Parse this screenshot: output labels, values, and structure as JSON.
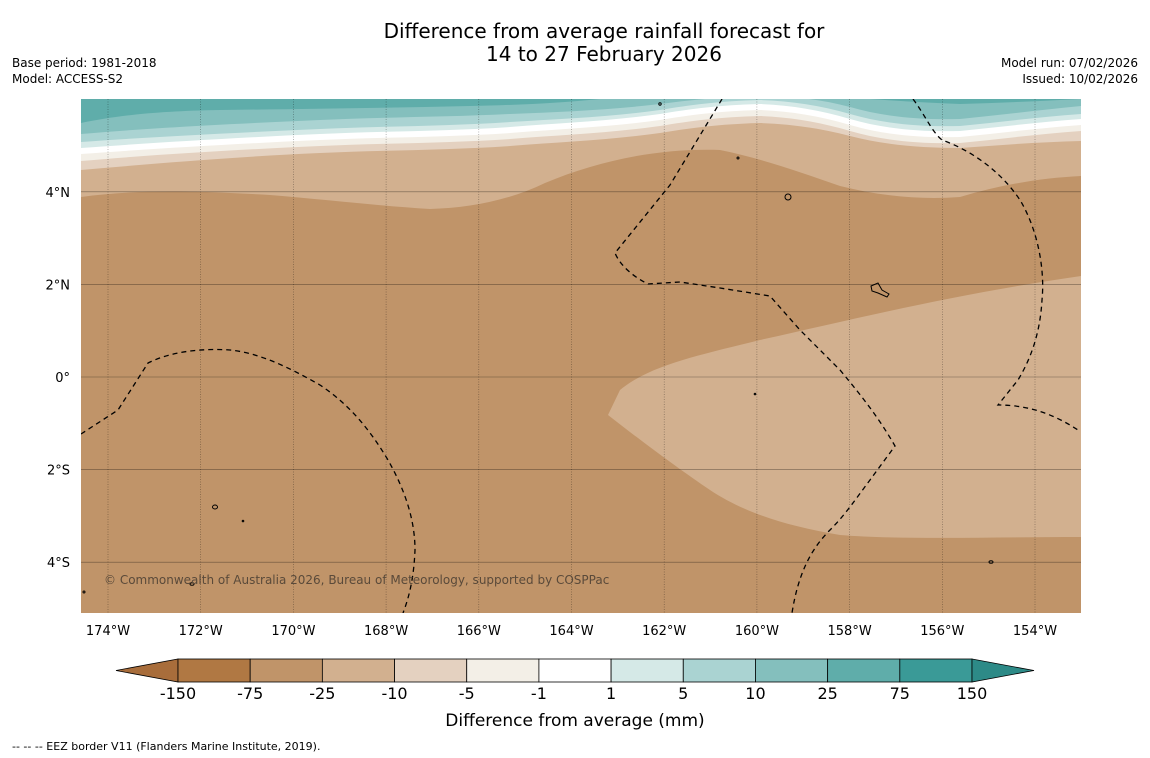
{
  "header": {
    "title_line1": "Difference from average rainfall forecast for",
    "title_line2": "14 to 27 February 2026",
    "base_period": "Base period: 1981-2018",
    "model": "Model: ACCESS-S2",
    "model_run": "Model run: 07/02/2026",
    "issued": "Issued: 10/02/2026"
  },
  "map": {
    "copyright": "© Commonwealth of Australia 2026, Bureau of Meteorology, supported by COSPPac",
    "lon_labels": [
      "174°W",
      "172°W",
      "170°W",
      "168°W",
      "166°W",
      "164°W",
      "162°W",
      "160°W",
      "158°W",
      "156°W",
      "154°W"
    ],
    "lat_labels": [
      "4°N",
      "2°N",
      "0°",
      "2°S",
      "4°S"
    ]
  },
  "legend": {
    "title": "Difference from average (mm)",
    "tick_labels": [
      "-150",
      "-75",
      "-25",
      "-10",
      "-5",
      "-1",
      "1",
      "5",
      "10",
      "25",
      "75",
      "150"
    ],
    "colors": {
      "below_150": "#a86d3b",
      "m150_m75": "#b07843",
      "m75_m25": "#c09469",
      "m25_m10": "#d2b08f",
      "m10_m5": "#e4d1c0",
      "m5_m1": "#f3efe7",
      "m1_p1": "#ffffff",
      "p1_p5": "#d5e9e7",
      "p5_p10": "#aad3d2",
      "p10_p25": "#84bfbd",
      "p25_p75": "#5fadaa",
      "p75_p150": "#3a9a97",
      "above_150": "#2d8a87"
    }
  },
  "footer": {
    "eez_note": "--  --  -- EEZ border V11 (Flanders Marine Institute, 2019)."
  }
}
